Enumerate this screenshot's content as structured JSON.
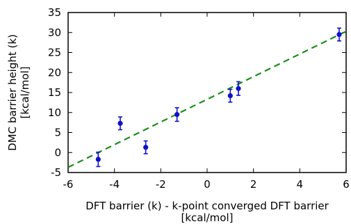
{
  "chart_data": {
    "type": "scatter",
    "title": "",
    "xlabel": [
      "DFT barrier (k) - k-point converged DFT barrier",
      "[kcal/mol]"
    ],
    "ylabel": [
      "DMC barrier height (k)",
      "[kcal/mol]"
    ],
    "xlim": [
      -6,
      6
    ],
    "ylim": [
      -5,
      35
    ],
    "xticks": [
      "-6",
      "-4",
      "-2",
      "0",
      "2",
      "4",
      "6"
    ],
    "yticks": [
      "-5",
      "0",
      "5",
      "10",
      "15",
      "20",
      "25",
      "30",
      "35"
    ],
    "grid": false,
    "legend": "none",
    "points": [
      {
        "x": -4.7,
        "y": -1.7,
        "err": 1.8
      },
      {
        "x": -3.75,
        "y": 7.3,
        "err": 1.6
      },
      {
        "x": -2.65,
        "y": 1.3,
        "err": 1.6
      },
      {
        "x": -1.3,
        "y": 9.5,
        "err": 1.7
      },
      {
        "x": 1.0,
        "y": 14.2,
        "err": 1.6
      },
      {
        "x": 1.35,
        "y": 16.0,
        "err": 1.7
      },
      {
        "x": 5.7,
        "y": 29.5,
        "err": 1.6
      }
    ],
    "fit_line": {
      "x": [
        -6,
        6
      ],
      "y": [
        -3.7,
        30.3
      ],
      "style": "dashed"
    },
    "colors": {
      "points": "#1010c8",
      "fit": "#1a8c1a",
      "axes": "#000000"
    }
  }
}
